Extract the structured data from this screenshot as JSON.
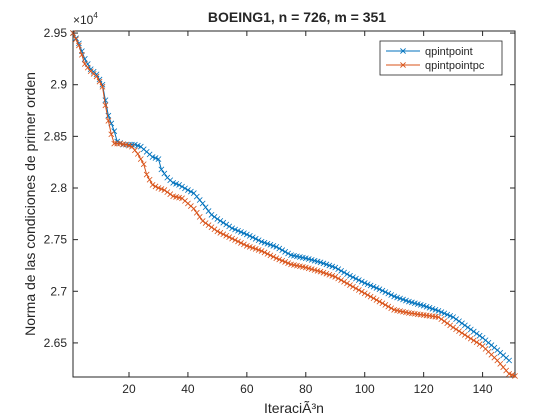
{
  "chart_data": {
    "type": "line",
    "title": "BOEING1, n = 726, m = 351",
    "xlabel": "IteraciÃ³n",
    "ylabel": "Norma de las condiciones de primer orden",
    "xlim": [
      1,
      151
    ],
    "ylim": [
      26170,
      29520
    ],
    "exponent_label": "×10",
    "exponent_power": "4",
    "x_ticks": [
      20,
      40,
      60,
      80,
      100,
      120,
      140
    ],
    "x_tick_labels": [
      "20",
      "40",
      "60",
      "80",
      "100",
      "120",
      "140"
    ],
    "y_ticks": [
      26500,
      27000,
      27500,
      28000,
      28500,
      29000,
      29500
    ],
    "y_tick_labels": [
      "2.65",
      "2.7",
      "2.75",
      "2.8",
      "2.85",
      "2.9",
      "2.95"
    ],
    "grid": false,
    "legend_position": "top-right",
    "marker": "x",
    "series": [
      {
        "name": "qpintpoint",
        "color": "#0072BD",
        "points": [
          [
            1,
            29500
          ],
          [
            3,
            29400
          ],
          [
            5,
            29250
          ],
          [
            7,
            29150
          ],
          [
            9,
            29100
          ],
          [
            11,
            29000
          ],
          [
            12,
            28850
          ],
          [
            13,
            28700
          ],
          [
            15,
            28550
          ],
          [
            16,
            28450
          ],
          [
            18,
            28420
          ],
          [
            20,
            28420
          ],
          [
            22,
            28420
          ],
          [
            24,
            28400
          ],
          [
            26,
            28350
          ],
          [
            28,
            28300
          ],
          [
            30,
            28280
          ],
          [
            31,
            28180
          ],
          [
            33,
            28100
          ],
          [
            35,
            28050
          ],
          [
            37,
            28030
          ],
          [
            40,
            27980
          ],
          [
            42,
            27950
          ],
          [
            45,
            27850
          ],
          [
            48,
            27740
          ],
          [
            50,
            27700
          ],
          [
            55,
            27610
          ],
          [
            60,
            27550
          ],
          [
            65,
            27480
          ],
          [
            70,
            27430
          ],
          [
            75,
            27350
          ],
          [
            80,
            27320
          ],
          [
            85,
            27280
          ],
          [
            90,
            27230
          ],
          [
            95,
            27150
          ],
          [
            100,
            27080
          ],
          [
            105,
            27020
          ],
          [
            110,
            26950
          ],
          [
            115,
            26900
          ],
          [
            120,
            26860
          ],
          [
            125,
            26810
          ],
          [
            130,
            26750
          ],
          [
            135,
            26650
          ],
          [
            140,
            26550
          ],
          [
            145,
            26430
          ],
          [
            149,
            26330
          ]
        ]
      },
      {
        "name": "qpintpointpc",
        "color": "#D95319",
        "points": [
          [
            1,
            29500
          ],
          [
            3,
            29380
          ],
          [
            5,
            29200
          ],
          [
            7,
            29130
          ],
          [
            9,
            29080
          ],
          [
            11,
            28980
          ],
          [
            12,
            28800
          ],
          [
            13,
            28650
          ],
          [
            14,
            28520
          ],
          [
            15,
            28430
          ],
          [
            17,
            28430
          ],
          [
            19,
            28420
          ],
          [
            21,
            28400
          ],
          [
            23,
            28330
          ],
          [
            25,
            28230
          ],
          [
            26,
            28130
          ],
          [
            28,
            28030
          ],
          [
            30,
            28000
          ],
          [
            32,
            27980
          ],
          [
            35,
            27920
          ],
          [
            38,
            27900
          ],
          [
            40,
            27850
          ],
          [
            42,
            27800
          ],
          [
            45,
            27680
          ],
          [
            48,
            27620
          ],
          [
            50,
            27580
          ],
          [
            55,
            27510
          ],
          [
            60,
            27440
          ],
          [
            65,
            27390
          ],
          [
            70,
            27320
          ],
          [
            75,
            27260
          ],
          [
            80,
            27230
          ],
          [
            85,
            27190
          ],
          [
            90,
            27140
          ],
          [
            95,
            27060
          ],
          [
            100,
            26980
          ],
          [
            105,
            26900
          ],
          [
            110,
            26820
          ],
          [
            115,
            26790
          ],
          [
            120,
            26770
          ],
          [
            125,
            26750
          ],
          [
            130,
            26650
          ],
          [
            135,
            26560
          ],
          [
            140,
            26470
          ],
          [
            145,
            26330
          ],
          [
            149,
            26200
          ],
          [
            151,
            26180
          ]
        ]
      }
    ]
  }
}
